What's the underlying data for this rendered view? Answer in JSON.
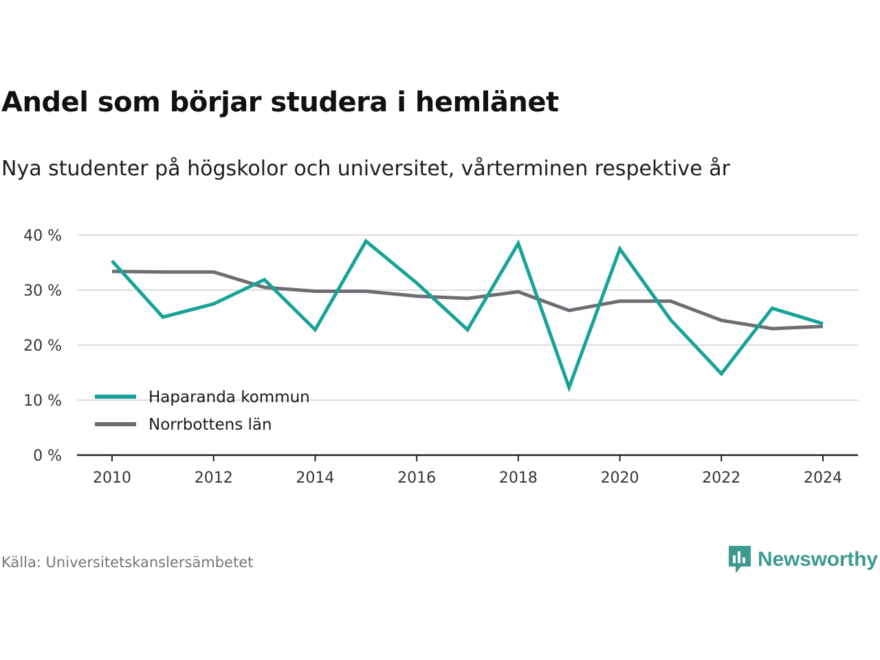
{
  "title": "Andel som börjar studera i hemlänet",
  "subtitle": "Nya studenter på högskolor och universitet, vårterminen respektive år",
  "source": "Källa: Universitetskanslersämbetet",
  "brand": {
    "name": "Newsworthy",
    "icon": "newsworthy-logo-icon",
    "color": "#3d9a8f"
  },
  "chart_data": {
    "type": "line",
    "x": [
      2010,
      2011,
      2012,
      2013,
      2014,
      2015,
      2016,
      2017,
      2018,
      2019,
      2020,
      2021,
      2022,
      2023,
      2024
    ],
    "series": [
      {
        "name": "Haparanda kommun",
        "color": "#17a398",
        "values": [
          35.3,
          25.1,
          27.5,
          31.9,
          22.8,
          38.9,
          31.3,
          22.8,
          38.5,
          12.3,
          37.5,
          24.6,
          14.8,
          26.7,
          23.9
        ]
      },
      {
        "name": "Norrbottens län",
        "color": "#6f6d73",
        "values": [
          33.4,
          33.3,
          33.3,
          30.5,
          29.8,
          29.8,
          28.9,
          28.5,
          29.7,
          26.3,
          28.0,
          28.0,
          24.5,
          23.0,
          23.4
        ]
      }
    ],
    "xticks": [
      "2010",
      "2012",
      "2014",
      "2016",
      "2018",
      "2020",
      "2022",
      "2024"
    ],
    "yticks": [
      "0 %",
      "10 %",
      "20 %",
      "30 %",
      "40 %"
    ],
    "ylim": [
      0,
      40
    ],
    "xlim": [
      2010,
      2024
    ],
    "grid": true,
    "legend_position": "bottom-left"
  }
}
